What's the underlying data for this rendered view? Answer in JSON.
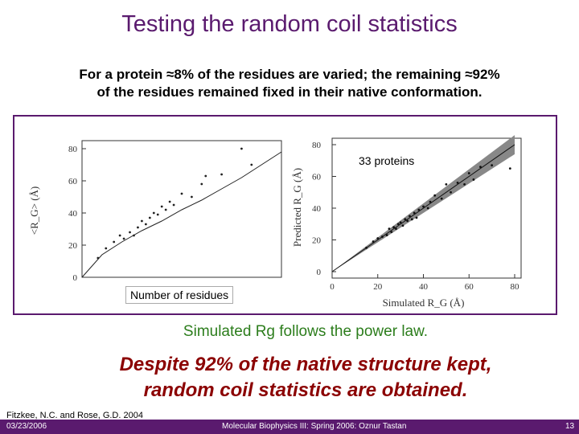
{
  "slide": {
    "title": "Testing the random coil statistics",
    "intro_line1": "For a protein ≈8% of the residues are varied; the remaining ≈92%",
    "intro_line2": "of the residues remained fixed in their native conformation.",
    "statement": "Simulated Rg follows the power law.",
    "conclusion_line1": "Despite 92% of the native structure kept,",
    "conclusion_line2": "random coil statistics are obtained.",
    "citation": "Fitzkee, N.C. and Rose, G.D. 2004"
  },
  "footer": {
    "date": "03/23/2006",
    "course": "Molecular Biophysics III: Spring 2006: Oznur Tastan",
    "page": "13"
  },
  "colors": {
    "title": "#5a1a6e",
    "statement": "#2c7d1c",
    "conclusion": "#8b0000",
    "footer_bg": "#5a1a6e"
  },
  "chart_data": [
    {
      "type": "scatter",
      "title": "",
      "xlabel": "Number of residues",
      "ylabel": "<R_G> (Å)",
      "ylim": [
        0,
        80
      ],
      "yticks": [
        "0",
        "20",
        "40",
        "60",
        "80"
      ],
      "points": [
        [
          8,
          12
        ],
        [
          12,
          18
        ],
        [
          16,
          22
        ],
        [
          19,
          26
        ],
        [
          21,
          24
        ],
        [
          24,
          28
        ],
        [
          26,
          26
        ],
        [
          28,
          31
        ],
        [
          30,
          35
        ],
        [
          32,
          33
        ],
        [
          34,
          37
        ],
        [
          36,
          40
        ],
        [
          38,
          39
        ],
        [
          40,
          44
        ],
        [
          42,
          42
        ],
        [
          44,
          47
        ],
        [
          46,
          45
        ],
        [
          50,
          52
        ],
        [
          55,
          50
        ],
        [
          60,
          58
        ],
        [
          62,
          63
        ],
        [
          70,
          64
        ],
        [
          80,
          80
        ],
        [
          85,
          70
        ]
      ],
      "fit_curve": [
        [
          0,
          0
        ],
        [
          10,
          14
        ],
        [
          20,
          22
        ],
        [
          30,
          29
        ],
        [
          40,
          35
        ],
        [
          50,
          42
        ],
        [
          60,
          48
        ],
        [
          70,
          55
        ],
        [
          80,
          62
        ],
        [
          90,
          70
        ],
        [
          100,
          78
        ]
      ]
    },
    {
      "type": "scatter",
      "title": "",
      "annotation": "33 proteins",
      "xlabel": "Simulated R_G (Å)",
      "ylabel": "Predicted R_G (Å)",
      "xlim": [
        0,
        80
      ],
      "ylim": [
        0,
        80
      ],
      "xticks": [
        "0",
        "20",
        "40",
        "60",
        "80"
      ],
      "yticks": [
        "0",
        "20",
        "40",
        "60",
        "80"
      ],
      "fit_line": [
        [
          0,
          0
        ],
        [
          80,
          80
        ]
      ],
      "points": [
        [
          15,
          15
        ],
        [
          18,
          19
        ],
        [
          20,
          21
        ],
        [
          22,
          22
        ],
        [
          24,
          23
        ],
        [
          25,
          27
        ],
        [
          26,
          25
        ],
        [
          27,
          28
        ],
        [
          28,
          27
        ],
        [
          29,
          30
        ],
        [
          30,
          31
        ],
        [
          31,
          29
        ],
        [
          32,
          33
        ],
        [
          33,
          32
        ],
        [
          34,
          35
        ],
        [
          35,
          33
        ],
        [
          36,
          37
        ],
        [
          37,
          34
        ],
        [
          38,
          39
        ],
        [
          40,
          41
        ],
        [
          42,
          40
        ],
        [
          43,
          44
        ],
        [
          45,
          48
        ],
        [
          48,
          46
        ],
        [
          50,
          55
        ],
        [
          52,
          50
        ],
        [
          55,
          56
        ],
        [
          58,
          55
        ],
        [
          60,
          62
        ],
        [
          62,
          58
        ],
        [
          65,
          66
        ],
        [
          70,
          67
        ],
        [
          78,
          65
        ]
      ]
    }
  ]
}
